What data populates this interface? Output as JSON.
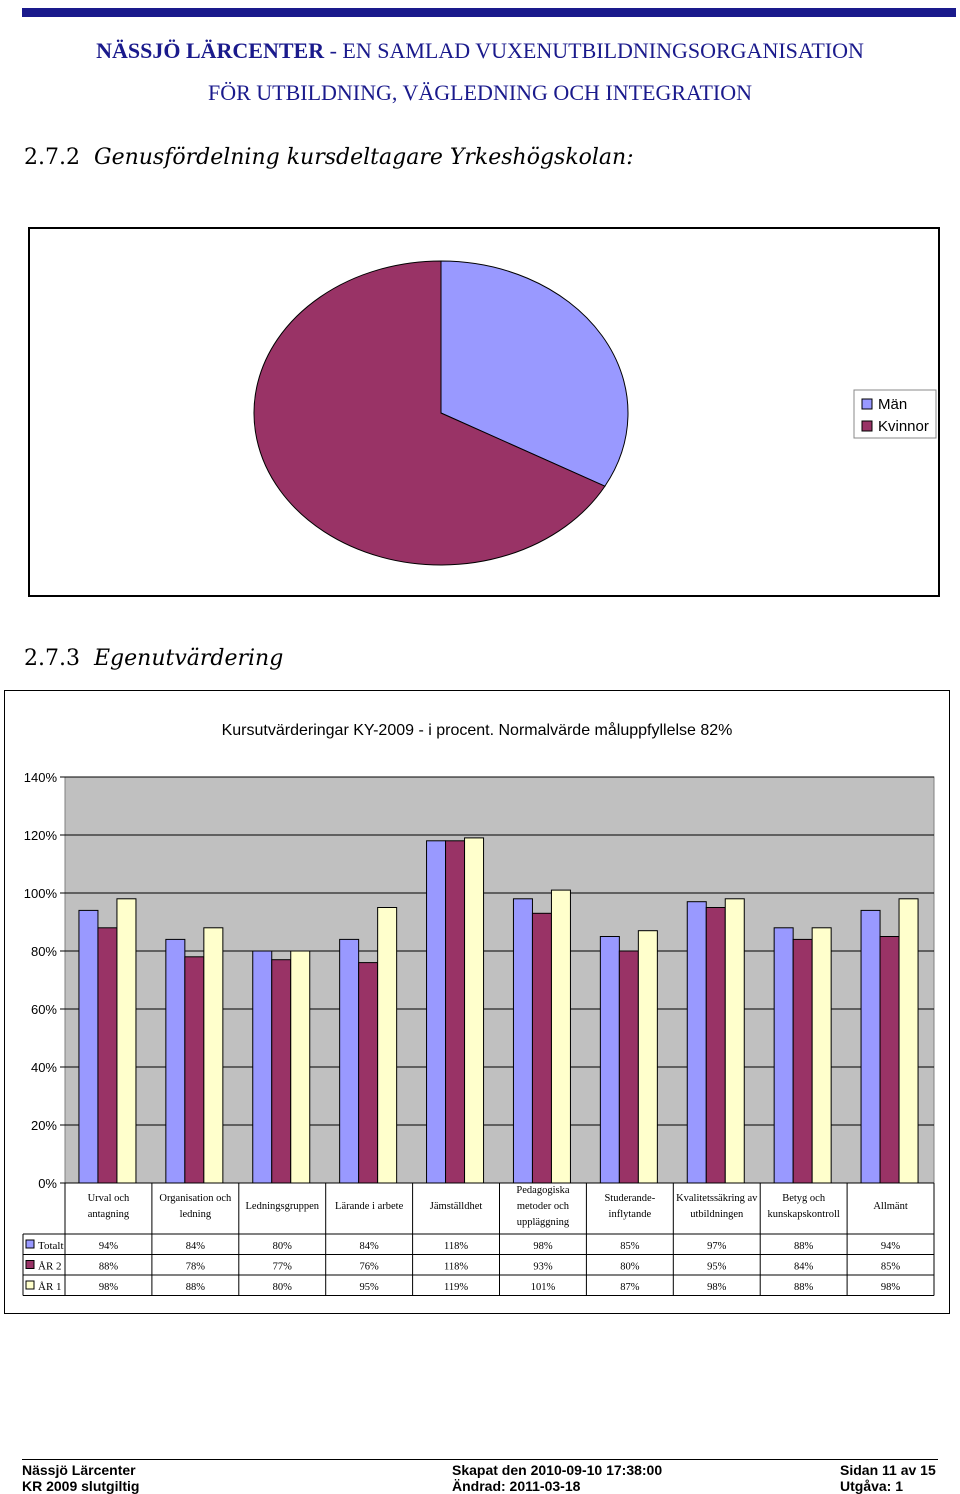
{
  "header": {
    "org_name_bold": "NÄSSJÖ LÄRCENTER",
    "org_name_rest": " - EN SAMLAD VUXENUTBILDNINGSORGANISATION",
    "subtitle": "FÖR UTBILDNING, VÄGLEDNING OCH INTEGRATION"
  },
  "section1": {
    "number": "2.7.2",
    "title": "Genusfördelning kursdeltagare Yrkeshögskolan:"
  },
  "section2": {
    "number": "2.7.3",
    "title": "Egenutvärdering"
  },
  "colors": {
    "series1": "#9999ff",
    "series2": "#993366",
    "series3": "#ffffcc",
    "plot_bg": "#c0c0c0",
    "header_blue": "#1a1a8c"
  },
  "chart_data": [
    {
      "type": "pie",
      "labels": [
        "Män",
        "Kvinnor"
      ],
      "values": [
        33,
        67
      ],
      "colors": [
        "#9999ff",
        "#993366"
      ],
      "legend_position": "right"
    },
    {
      "type": "bar",
      "title": "Kursutvärderingar KY-2009 - i procent. Normalvärde måluppfyllelse 82%",
      "categories": [
        [
          "Urval och",
          "antagning"
        ],
        [
          "Organisation och",
          "ledning"
        ],
        [
          "Ledningsgruppen"
        ],
        [
          "Lärande i arbete"
        ],
        [
          "Jämställdhet"
        ],
        [
          "Pedagogiska",
          "metoder och",
          "uppläggning"
        ],
        [
          "Studerande-",
          "inflytande"
        ],
        [
          "Kvalitetssäkring av",
          "utbildningen"
        ],
        [
          "Betyg och",
          "kunskapskontroll"
        ],
        [
          "Allmänt"
        ]
      ],
      "yticks": [
        "0%",
        "20%",
        "40%",
        "60%",
        "80%",
        "100%",
        "120%",
        "140%"
      ],
      "ylim": [
        0,
        140
      ],
      "grid": true,
      "series": [
        {
          "name": "Totalt",
          "values": [
            94,
            84,
            80,
            84,
            118,
            98,
            85,
            97,
            88,
            94
          ],
          "labels": [
            "94%",
            "84%",
            "80%",
            "84%",
            "118%",
            "98%",
            "85%",
            "97%",
            "88%",
            "94%"
          ]
        },
        {
          "name": "ÅR 2",
          "values": [
            88,
            78,
            77,
            76,
            118,
            93,
            80,
            95,
            84,
            85
          ],
          "labels": [
            "88%",
            "78%",
            "77%",
            "76%",
            "118%",
            "93%",
            "80%",
            "95%",
            "84%",
            "85%"
          ]
        },
        {
          "name": "ÅR 1",
          "values": [
            98,
            88,
            80,
            95,
            119,
            101,
            87,
            98,
            88,
            98
          ],
          "labels": [
            "98%",
            "88%",
            "80%",
            "95%",
            "119%",
            "101%",
            "87%",
            "98%",
            "88%",
            "98%"
          ]
        }
      ]
    }
  ],
  "footer": {
    "org": "Nässjö Lärcenter",
    "doc": "KR 2009 slutgiltig",
    "created": "Skapat den 2010-09-10 17:38:00",
    "changed": "Ändrad: 2011-03-18",
    "page": "Sidan 11 av 15",
    "edition": "Utgåva: 1"
  }
}
